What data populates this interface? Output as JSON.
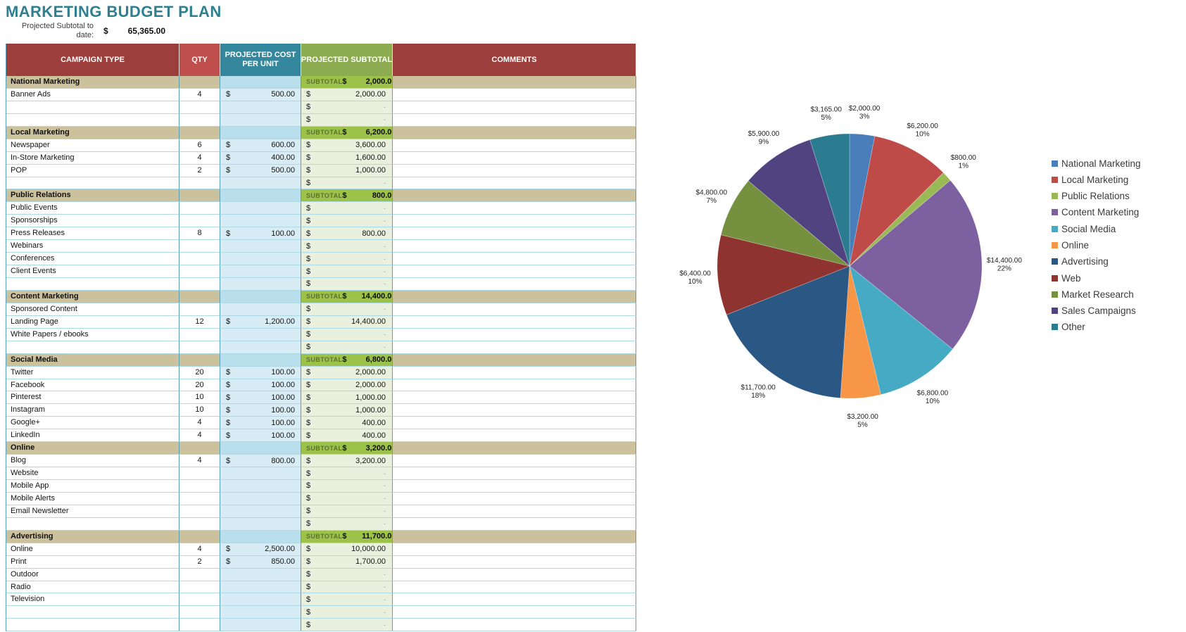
{
  "page": {
    "title": "MARKETING BUDGET PLAN"
  },
  "summary": {
    "label_line1": "Projected Subtotal to",
    "label_line2": "date:",
    "currency": "$",
    "value": "65,365.00"
  },
  "table": {
    "headers": [
      "CAMPAIGN TYPE",
      "QTY",
      "PROJECTED COST PER UNIT",
      "PROJECTED SUBTOTAL",
      "COMMENTS"
    ],
    "subtotal_label": "SUBTOTAL",
    "currency": "$",
    "empty_value": "-",
    "sections": [
      {
        "name": "National Marketing",
        "subtotal": "2,000.00",
        "rows": [
          {
            "campaign": "Banner Ads",
            "qty": "4",
            "cost": "500.00",
            "subtotal": "2,000.00"
          },
          {
            "campaign": "",
            "qty": "",
            "cost": "",
            "subtotal": ""
          },
          {
            "campaign": "",
            "qty": "",
            "cost": "",
            "subtotal": ""
          }
        ]
      },
      {
        "name": "Local Marketing",
        "subtotal": "6,200.00",
        "rows": [
          {
            "campaign": "Newspaper",
            "qty": "6",
            "cost": "600.00",
            "subtotal": "3,600.00"
          },
          {
            "campaign": "In-Store Marketing",
            "qty": "4",
            "cost": "400.00",
            "subtotal": "1,600.00"
          },
          {
            "campaign": "POP",
            "qty": "2",
            "cost": "500.00",
            "subtotal": "1,000.00"
          },
          {
            "campaign": "",
            "qty": "",
            "cost": "",
            "subtotal": ""
          }
        ]
      },
      {
        "name": "Public Relations",
        "subtotal": "800.00",
        "rows": [
          {
            "campaign": "Public Events",
            "qty": "",
            "cost": "",
            "subtotal": ""
          },
          {
            "campaign": "Sponsorships",
            "qty": "",
            "cost": "",
            "subtotal": ""
          },
          {
            "campaign": "Press Releases",
            "qty": "8",
            "cost": "100.00",
            "subtotal": "800.00"
          },
          {
            "campaign": "Webinars",
            "qty": "",
            "cost": "",
            "subtotal": ""
          },
          {
            "campaign": "Conferences",
            "qty": "",
            "cost": "",
            "subtotal": ""
          },
          {
            "campaign": "Client Events",
            "qty": "",
            "cost": "",
            "subtotal": ""
          },
          {
            "campaign": "",
            "qty": "",
            "cost": "",
            "subtotal": ""
          }
        ]
      },
      {
        "name": "Content Marketing",
        "subtotal": "14,400.00",
        "rows": [
          {
            "campaign": "Sponsored Content",
            "qty": "",
            "cost": "",
            "subtotal": ""
          },
          {
            "campaign": "Landing Page",
            "qty": "12",
            "cost": "1,200.00",
            "subtotal": "14,400.00"
          },
          {
            "campaign": "White Papers / ebooks",
            "qty": "",
            "cost": "",
            "subtotal": ""
          },
          {
            "campaign": "",
            "qty": "",
            "cost": "",
            "subtotal": ""
          }
        ]
      },
      {
        "name": "Social Media",
        "subtotal": "6,800.00",
        "rows": [
          {
            "campaign": "Twitter",
            "qty": "20",
            "cost": "100.00",
            "subtotal": "2,000.00"
          },
          {
            "campaign": "Facebook",
            "qty": "20",
            "cost": "100.00",
            "subtotal": "2,000.00"
          },
          {
            "campaign": "Pinterest",
            "qty": "10",
            "cost": "100.00",
            "subtotal": "1,000.00"
          },
          {
            "campaign": "Instagram",
            "qty": "10",
            "cost": "100.00",
            "subtotal": "1,000.00"
          },
          {
            "campaign": "Google+",
            "qty": "4",
            "cost": "100.00",
            "subtotal": "400.00"
          },
          {
            "campaign": "LinkedIn",
            "qty": "4",
            "cost": "100.00",
            "subtotal": "400.00"
          }
        ]
      },
      {
        "name": "Online",
        "subtotal": "3,200.00",
        "rows": [
          {
            "campaign": "Blog",
            "qty": "4",
            "cost": "800.00",
            "subtotal": "3,200.00"
          },
          {
            "campaign": "Website",
            "qty": "",
            "cost": "",
            "subtotal": ""
          },
          {
            "campaign": "Mobile App",
            "qty": "",
            "cost": "",
            "subtotal": ""
          },
          {
            "campaign": "Mobile Alerts",
            "qty": "",
            "cost": "",
            "subtotal": ""
          },
          {
            "campaign": "Email Newsletter",
            "qty": "",
            "cost": "",
            "subtotal": ""
          },
          {
            "campaign": "",
            "qty": "",
            "cost": "",
            "subtotal": ""
          }
        ]
      },
      {
        "name": "Advertising",
        "subtotal": "11,700.00",
        "rows": [
          {
            "campaign": "Online",
            "qty": "4",
            "cost": "2,500.00",
            "subtotal": "10,000.00"
          },
          {
            "campaign": "Print",
            "qty": "2",
            "cost": "850.00",
            "subtotal": "1,700.00"
          },
          {
            "campaign": "Outdoor",
            "qty": "",
            "cost": "",
            "subtotal": ""
          },
          {
            "campaign": "Radio",
            "qty": "",
            "cost": "",
            "subtotal": ""
          },
          {
            "campaign": "Television",
            "qty": "",
            "cost": "",
            "subtotal": ""
          },
          {
            "campaign": "",
            "qty": "",
            "cost": "",
            "subtotal": ""
          },
          {
            "campaign": "",
            "qty": "",
            "cost": "",
            "subtotal": ""
          }
        ]
      }
    ]
  },
  "chart_data": {
    "type": "pie",
    "title": "",
    "total": 65365,
    "legend_position": "right",
    "slices": [
      {
        "label": "National Marketing",
        "value": 2000,
        "display_value": "$2,000.00",
        "display_pct": "3%",
        "color": "#4a7ebb"
      },
      {
        "label": "Local Marketing",
        "value": 6200,
        "display_value": "$6,200.00",
        "display_pct": "10%",
        "color": "#be4b48"
      },
      {
        "label": "Public Relations",
        "value": 800,
        "display_value": "$800.00",
        "display_pct": "1%",
        "color": "#98b954"
      },
      {
        "label": "Content Marketing",
        "value": 14400,
        "display_value": "$14,400.00",
        "display_pct": "22%",
        "color": "#7d60a0"
      },
      {
        "label": "Social Media",
        "value": 6800,
        "display_value": "$6,800.00",
        "display_pct": "10%",
        "color": "#46aac5"
      },
      {
        "label": "Online",
        "value": 3200,
        "display_value": "$3,200.00",
        "display_pct": "5%",
        "color": "#f79646"
      },
      {
        "label": "Advertising",
        "value": 11700,
        "display_value": "$11,700.00",
        "display_pct": "18%",
        "color": "#2a5783"
      },
      {
        "label": "Web",
        "value": 6400,
        "display_value": "$6,400.00",
        "display_pct": "10%",
        "color": "#8e3330"
      },
      {
        "label": "Market Research",
        "value": 4800,
        "display_value": "$4,800.00",
        "display_pct": "7%",
        "color": "#75913f"
      },
      {
        "label": "Sales Campaigns",
        "value": 5900,
        "display_value": "$5,900.00",
        "display_pct": "9%",
        "color": "#514380"
      },
      {
        "label": "Other",
        "value": 3165,
        "display_value": "$3,165.00",
        "display_pct": "5%",
        "color": "#2c7c91"
      }
    ]
  }
}
